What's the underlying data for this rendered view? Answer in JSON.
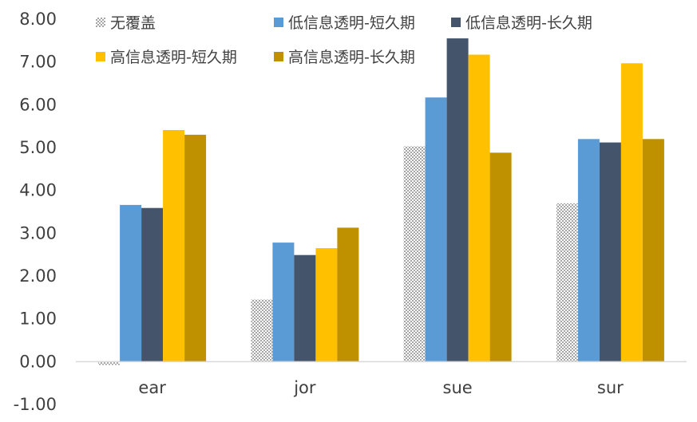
{
  "chart_data": {
    "type": "bar",
    "categories": [
      "ear",
      "jor",
      "sue",
      "sur"
    ],
    "series": [
      {
        "name": "无覆盖",
        "color": "#c8c8c8",
        "pattern": "hatched",
        "values": [
          -0.08,
          1.45,
          5.03,
          3.7
        ]
      },
      {
        "name": "低信息透明-短久期",
        "color": "#5b9bd5",
        "values": [
          3.66,
          2.78,
          6.17,
          5.2
        ]
      },
      {
        "name": "低信息透明-长久期",
        "color": "#44546a",
        "values": [
          3.59,
          2.49,
          7.55,
          5.12
        ]
      },
      {
        "name": "高信息透明-短久期",
        "color": "#ffc000",
        "values": [
          5.41,
          2.65,
          7.17,
          6.97
        ]
      },
      {
        "name": "高信息透明-长久期",
        "color": "#bf9000",
        "values": [
          5.3,
          3.13,
          4.88,
          5.2
        ]
      }
    ],
    "yticks": [
      "-1.00",
      "0.00",
      "1.00",
      "2.00",
      "3.00",
      "4.00",
      "5.00",
      "6.00",
      "7.00",
      "8.00"
    ],
    "ylim": [
      -1,
      8
    ],
    "grid": false,
    "legend_position": "top"
  }
}
